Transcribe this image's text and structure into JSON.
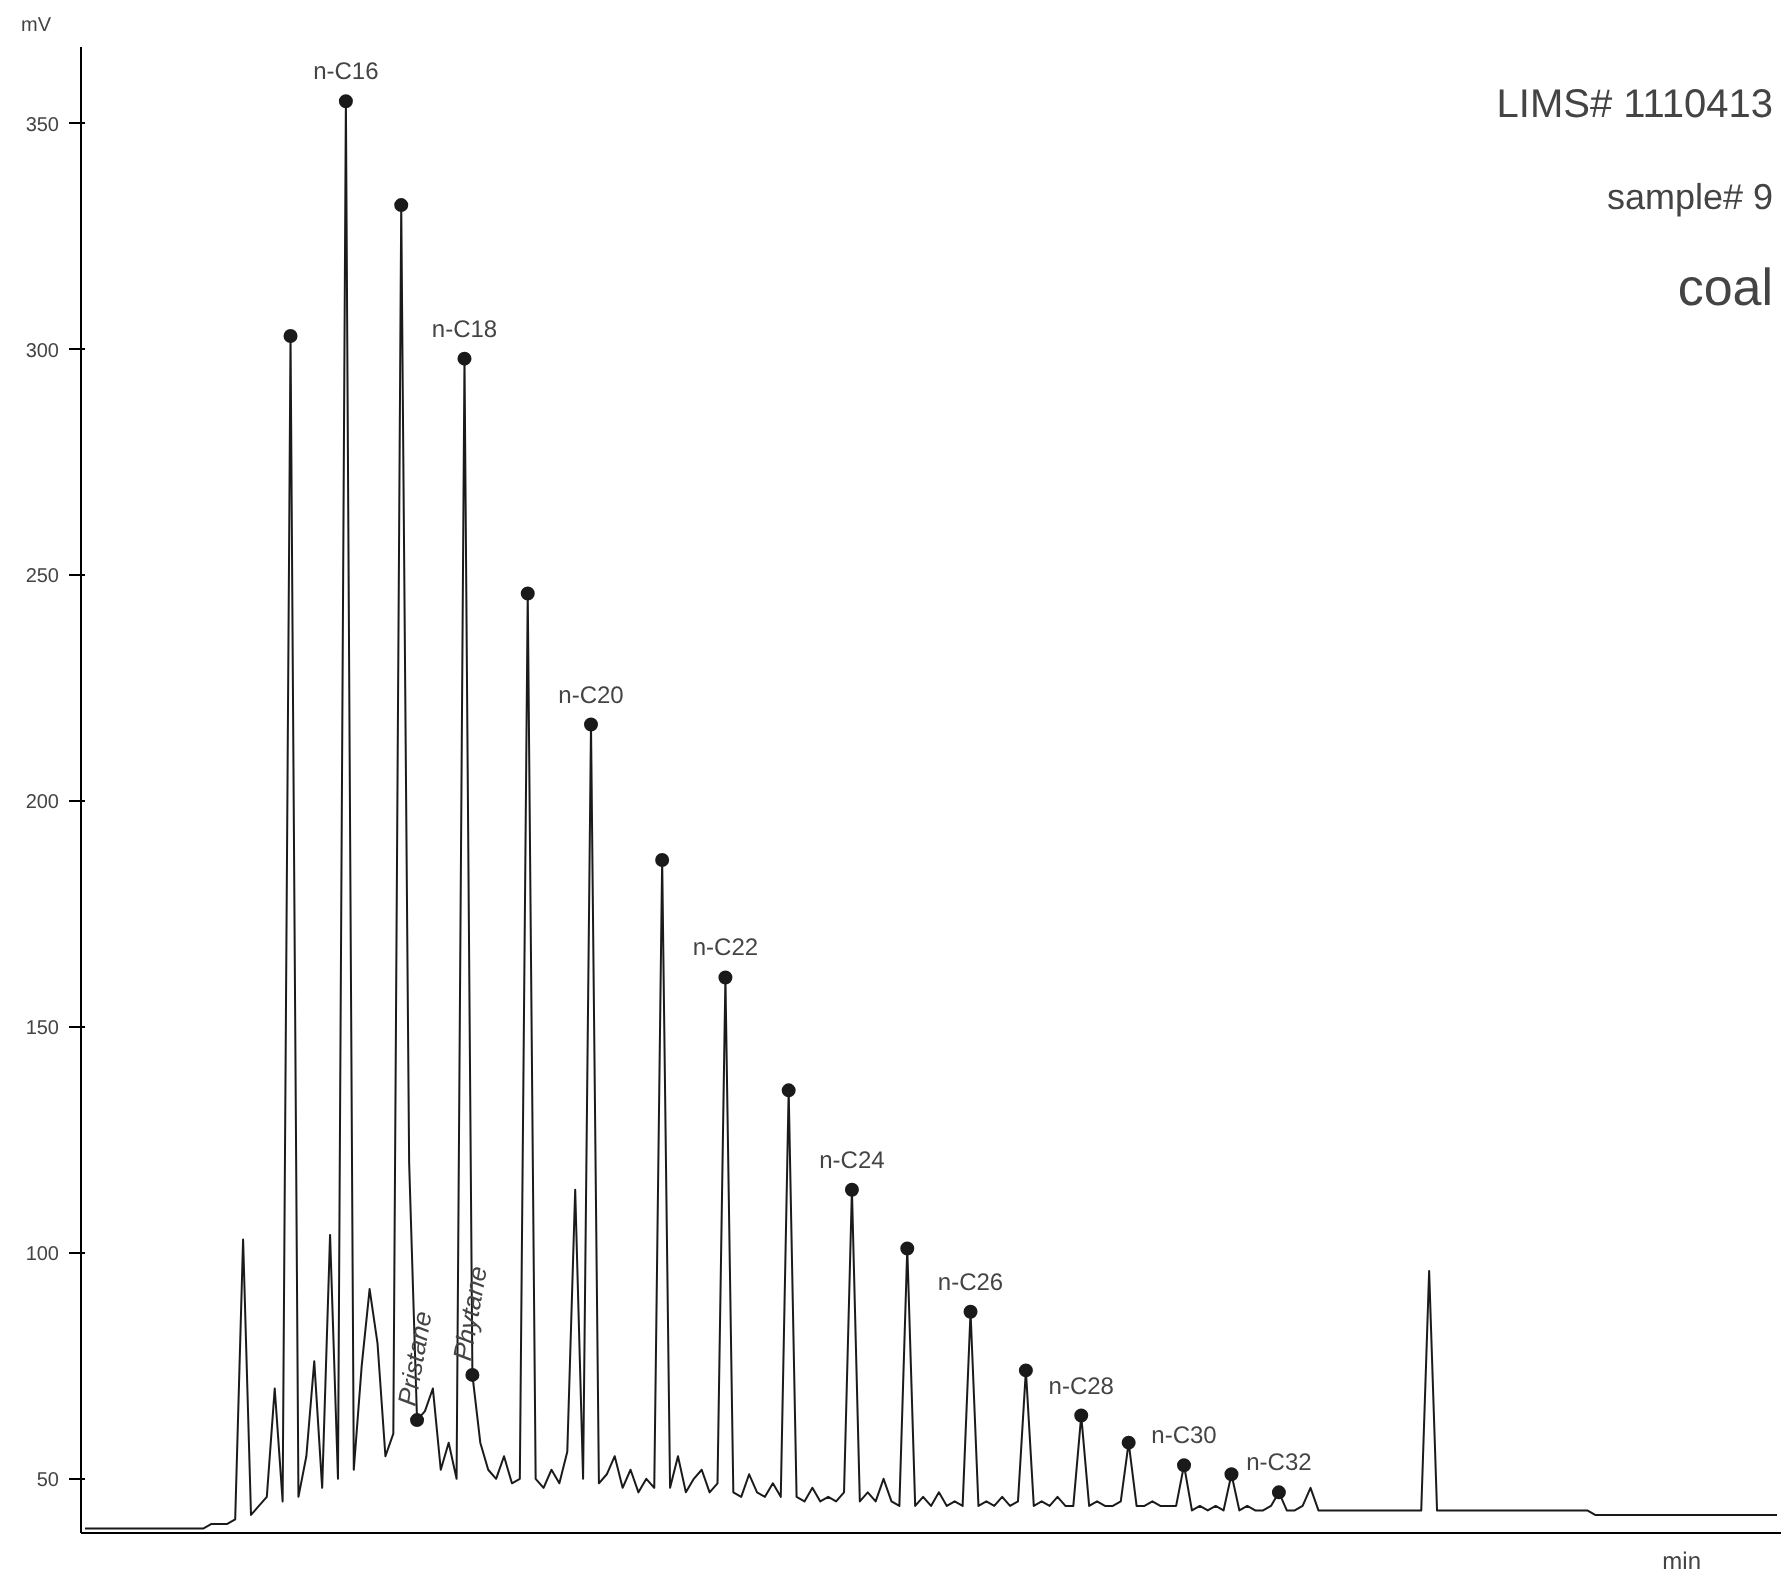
{
  "chart_data": {
    "type": "line",
    "ylabel": "mV",
    "xlabel": "min",
    "categories": [
      null,
      null,
      null,
      null,
      null,
      null,
      null,
      null,
      null,
      null,
      null,
      null,
      null,
      null,
      null,
      null,
      null,
      null,
      null,
      null,
      null,
      null,
      null,
      null,
      null,
      null,
      null,
      null,
      null,
      null,
      null,
      null,
      null,
      null,
      null,
      null,
      null,
      null,
      null,
      null,
      null,
      null,
      null,
      null,
      null,
      null,
      null,
      null,
      null,
      null,
      null,
      null,
      null,
      null,
      null,
      null,
      null,
      null,
      null,
      null,
      null,
      null,
      null,
      null,
      null,
      null,
      null,
      null,
      null,
      null,
      null,
      null,
      null,
      null,
      null,
      null,
      null,
      null,
      null,
      null,
      null,
      null,
      null,
      null,
      null,
      null,
      null,
      null,
      null,
      null,
      null,
      null,
      null,
      null,
      null,
      null,
      null,
      null,
      null,
      null,
      null,
      null,
      null,
      null,
      null,
      null,
      null,
      null,
      null,
      null,
      null,
      null,
      null,
      null,
      null,
      null,
      null,
      null,
      null,
      null,
      null,
      null,
      null,
      null,
      null,
      null,
      null,
      null,
      null,
      null,
      null,
      null,
      null,
      null,
      null,
      null,
      null,
      null,
      null,
      null,
      null,
      null,
      null,
      null,
      null,
      null,
      null,
      null,
      null,
      null,
      null,
      null,
      null,
      null,
      null,
      null,
      null,
      null,
      null,
      null,
      null,
      null,
      null,
      null,
      null,
      null,
      null,
      null,
      null,
      null,
      null,
      null,
      null,
      null,
      null,
      null,
      null,
      null,
      null,
      null,
      null,
      null,
      null,
      null,
      null,
      null,
      null,
      null,
      null,
      null,
      null,
      null,
      null,
      null,
      null,
      null,
      null,
      null,
      null,
      null,
      null,
      null,
      null,
      null,
      null,
      null,
      null,
      null,
      null,
      null,
      null,
      null,
      null,
      null,
      null
    ],
    "series": [
      {
        "color": "#1a1a1a",
        "values": [
          39,
          39,
          39,
          39,
          39,
          39,
          39,
          39,
          39,
          39,
          39,
          39,
          39,
          39,
          39,
          39,
          40,
          40,
          40,
          41,
          103,
          42,
          44,
          46,
          70,
          45,
          303,
          46,
          55,
          76,
          48,
          104,
          50,
          355,
          52,
          75,
          92,
          80,
          55,
          60,
          332,
          120,
          63,
          65,
          70,
          52,
          58,
          50,
          298,
          73,
          58,
          52,
          50,
          55,
          49,
          50,
          246,
          50,
          48,
          52,
          49,
          56,
          114,
          50,
          217,
          49,
          51,
          55,
          48,
          52,
          47,
          50,
          48,
          187,
          48,
          55,
          47,
          50,
          52,
          47,
          49,
          161,
          47,
          46,
          51,
          47,
          46,
          49,
          46,
          136,
          46,
          45,
          48,
          45,
          46,
          45,
          47,
          114,
          45,
          47,
          45,
          50,
          45,
          44,
          101,
          44,
          46,
          44,
          47,
          44,
          45,
          44,
          87,
          44,
          45,
          44,
          46,
          44,
          45,
          74,
          44,
          45,
          44,
          46,
          44,
          44,
          64,
          44,
          45,
          44,
          44,
          45,
          58,
          44,
          44,
          45,
          44,
          44,
          44,
          53,
          43,
          44,
          43,
          44,
          43,
          51,
          43,
          44,
          43,
          43,
          44,
          47,
          43,
          43,
          44,
          48,
          43,
          43,
          43,
          43,
          43,
          43,
          43,
          43,
          43,
          43,
          43,
          43,
          43,
          43,
          96,
          43,
          43,
          43,
          43,
          43,
          43,
          43,
          43,
          43,
          43,
          43,
          43,
          43,
          43,
          43,
          43,
          43,
          43,
          43,
          43,
          42,
          42,
          42,
          42,
          42,
          42,
          42,
          42,
          42,
          42,
          42,
          42,
          42,
          42,
          42,
          42,
          42,
          42,
          42,
          42,
          42,
          42,
          42,
          42
        ]
      },
      {
        "type": "scatter",
        "color": "#1a1a1a",
        "marker": "circle",
        "values": [
          null,
          null,
          null,
          null,
          null,
          null,
          null,
          null,
          null,
          null,
          null,
          null,
          null,
          null,
          null,
          null,
          null,
          null,
          null,
          null,
          null,
          null,
          null,
          null,
          null,
          null,
          303,
          null,
          null,
          null,
          null,
          null,
          null,
          355,
          null,
          null,
          null,
          null,
          null,
          null,
          332,
          null,
          63,
          null,
          null,
          null,
          null,
          null,
          298,
          73,
          null,
          null,
          null,
          null,
          null,
          null,
          246,
          null,
          null,
          null,
          null,
          null,
          null,
          null,
          217,
          null,
          null,
          null,
          null,
          null,
          null,
          null,
          null,
          187,
          null,
          null,
          null,
          null,
          null,
          null,
          null,
          161,
          null,
          null,
          null,
          null,
          null,
          null,
          null,
          136,
          null,
          null,
          null,
          null,
          null,
          null,
          null,
          114,
          null,
          null,
          null,
          null,
          null,
          null,
          101,
          null,
          null,
          null,
          null,
          null,
          null,
          null,
          87,
          null,
          null,
          null,
          null,
          null,
          null,
          74,
          null,
          null,
          null,
          null,
          null,
          null,
          64,
          null,
          null,
          null,
          null,
          null,
          58,
          null,
          null,
          null,
          null,
          null,
          null,
          53,
          null,
          null,
          null,
          null,
          null,
          51,
          null,
          null,
          null,
          null,
          null,
          47,
          null,
          null,
          null,
          null,
          null,
          null,
          null,
          null,
          null,
          null,
          null,
          null,
          null,
          null,
          null,
          null,
          null,
          null,
          null,
          null,
          null,
          null,
          null,
          null,
          null,
          null,
          null,
          null,
          null,
          null,
          null,
          null,
          null,
          null,
          null,
          null,
          null,
          null,
          null,
          null,
          null,
          null,
          null,
          null,
          null,
          null,
          null,
          null,
          null,
          null,
          null,
          null,
          null,
          null,
          null,
          null,
          null,
          null,
          null,
          null,
          null,
          null,
          null
        ]
      }
    ],
    "ylim": [
      38,
      367
    ],
    "yticks": [
      50,
      100,
      150,
      200,
      250,
      300,
      350
    ],
    "grid": false,
    "annotations": [
      {
        "text": "n-C16",
        "y": 355
      },
      {
        "text": "n-C18",
        "y": 298
      },
      {
        "text": "n-C20",
        "y": 217
      },
      {
        "text": "n-C22",
        "y": 161
      },
      {
        "text": "n-C24",
        "y": 114
      },
      {
        "text": "n-C26",
        "y": 87
      },
      {
        "text": "n-C28",
        "y": 64
      },
      {
        "text": "n-C30",
        "y": 53
      },
      {
        "text": "n-C32",
        "y": 47
      },
      {
        "text": "Pristane",
        "y": 63
      },
      {
        "text": "Phytane",
        "y": 73
      },
      "LIMS# 1110413",
      "sample# 9",
      "coal"
    ]
  }
}
